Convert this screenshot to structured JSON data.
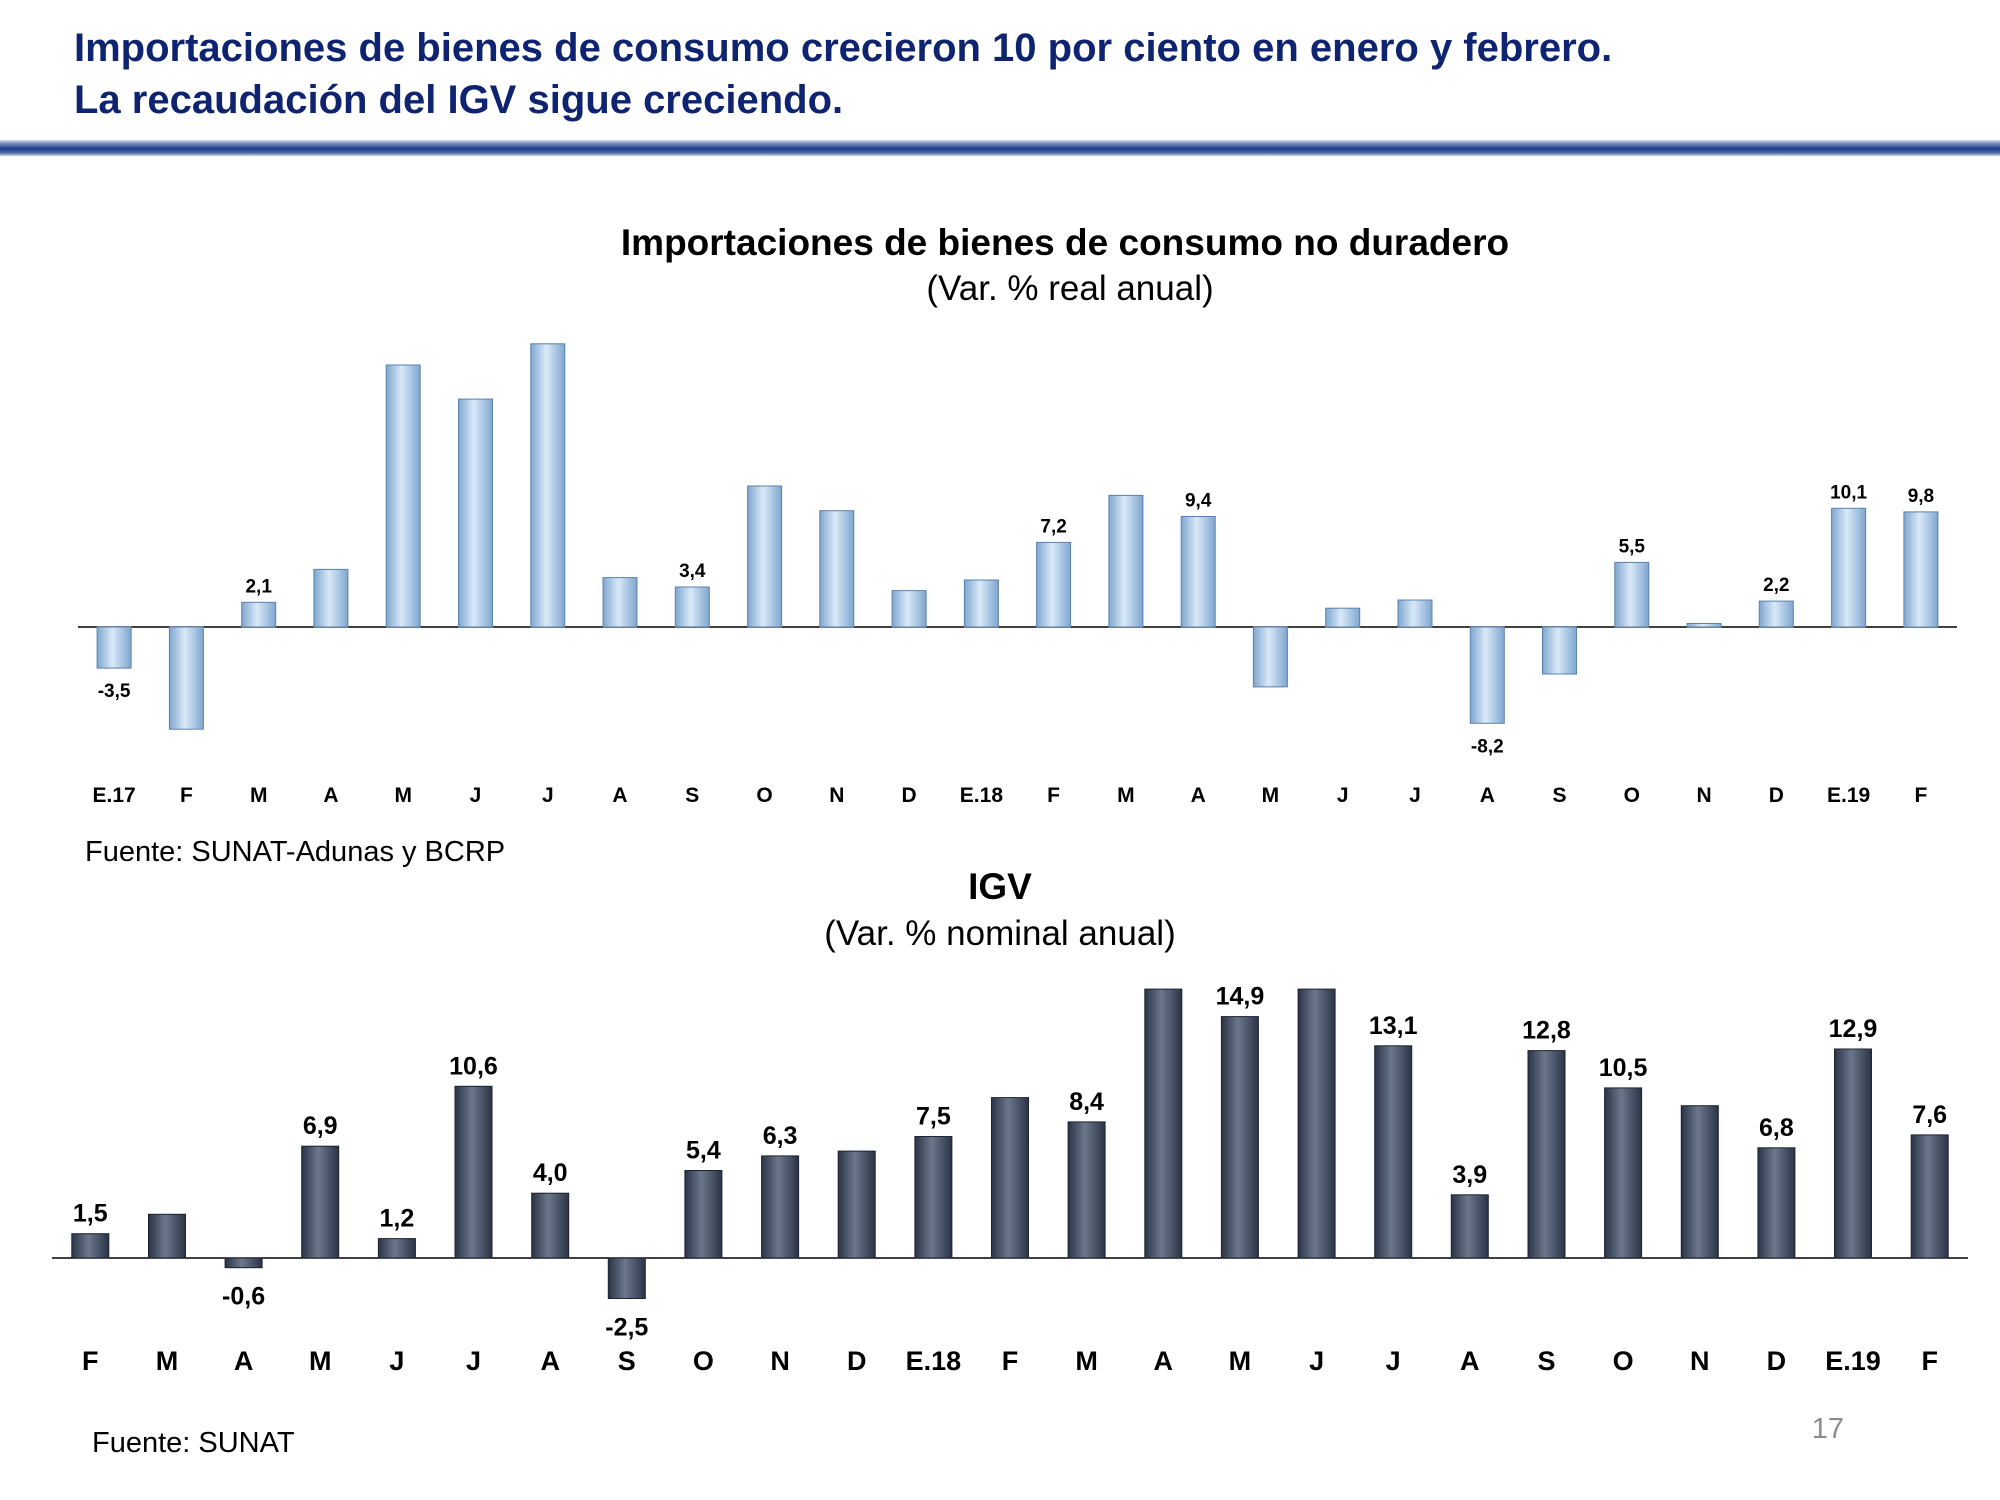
{
  "slide": {
    "title_line1": "Importaciones de bienes de consumo crecieron 10 por ciento en enero y febrero.",
    "title_line2": "La recaudación del IGV sigue creciendo.",
    "page_number": "17"
  },
  "chart_data": [
    {
      "type": "bar",
      "title": "Importaciones de bienes de consumo no duradero",
      "subtitle": "(Var. % real anual)",
      "source": "Fuente: SUNAT-Adunas y BCRP",
      "color": "#9ec4ea",
      "label_size": 19,
      "categories": [
        "E.17",
        "F",
        "M",
        "A",
        "M",
        "J",
        "J",
        "A",
        "S",
        "O",
        "N",
        "D",
        "E.18",
        "F",
        "M",
        "A",
        "M",
        "J",
        "J",
        "A",
        "S",
        "O",
        "N",
        "D",
        "E.19",
        "F"
      ],
      "values": [
        -3.5,
        -8.7,
        2.1,
        4.9,
        22.3,
        19.4,
        24.1,
        4.2,
        3.4,
        12.0,
        9.9,
        3.1,
        4.0,
        7.2,
        11.2,
        9.4,
        -5.1,
        1.6,
        2.3,
        -8.2,
        -4.0,
        5.5,
        0.3,
        2.2,
        10.1,
        9.8
      ],
      "labels": [
        "-3,5",
        "",
        "2,1",
        "",
        "",
        "",
        "",
        "",
        "3,4",
        "",
        "",
        "",
        "",
        "7,2",
        "",
        "9,4",
        "",
        "",
        "",
        "-8,2",
        "",
        "5,5",
        "",
        "2,2",
        "10,1",
        "9,8"
      ],
      "ylim": [
        -12,
        25
      ],
      "legend": "none",
      "grid": false
    },
    {
      "type": "bar",
      "title": "IGV",
      "subtitle": "(Var. % nominal anual)",
      "source": "Fuente: SUNAT",
      "color": "#3f4a60",
      "label_size": 25,
      "categories": [
        "F",
        "M",
        "A",
        "M",
        "J",
        "J",
        "A",
        "S",
        "O",
        "N",
        "D",
        "E.18",
        "F",
        "M",
        "A",
        "M",
        "J",
        "J",
        "A",
        "S",
        "O",
        "N",
        "D",
        "E.19",
        "F"
      ],
      "values": [
        1.5,
        2.7,
        -0.6,
        6.9,
        1.2,
        10.6,
        4.0,
        -2.5,
        5.4,
        6.3,
        6.6,
        7.5,
        9.9,
        8.4,
        16.6,
        14.9,
        16.6,
        13.1,
        3.9,
        12.8,
        10.5,
        9.4,
        6.8,
        12.9,
        7.6
      ],
      "labels": [
        "1,5",
        "",
        "-0,6",
        "6,9",
        "1,2",
        "10,6",
        "4,0",
        "-2,5",
        "5,4",
        "6,3",
        "",
        "7,5",
        "",
        "8,4",
        "",
        "14,9",
        "",
        "13,1",
        "3,9",
        "12,8",
        "10,5",
        "",
        "6,8",
        "12,9",
        "7,6"
      ],
      "ylim": [
        -6,
        18
      ],
      "legend": "none",
      "grid": false
    }
  ]
}
